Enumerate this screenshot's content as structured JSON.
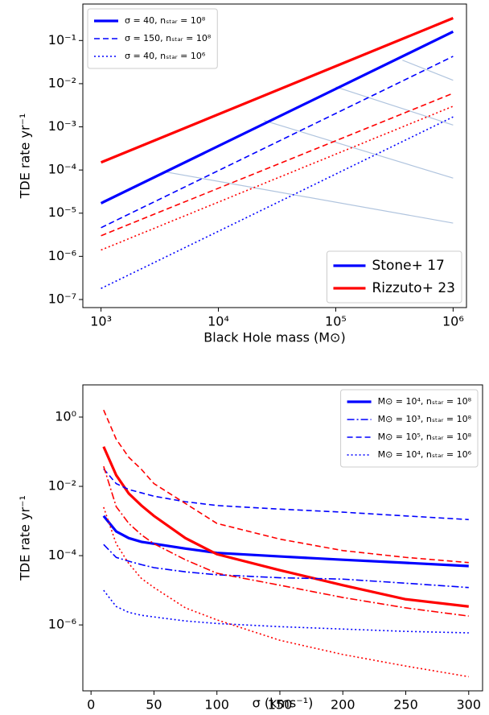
{
  "chart_data": [
    {
      "type": "line",
      "xlabel": "Black Hole mass (M⊙)",
      "ylabel": "TDE rate  yr⁻¹",
      "xlog": true,
      "ylog": true,
      "xlim": [
        700,
        1300000
      ],
      "ylim": [
        6.5e-08,
        0.7
      ],
      "xticks": [
        {
          "value": 1000,
          "label": "10³"
        },
        {
          "value": 10000,
          "label": "10⁴"
        },
        {
          "value": 100000,
          "label": "10⁵"
        },
        {
          "value": 1000000,
          "label": "10⁶"
        }
      ],
      "yticks": [
        {
          "value": 1e-07,
          "label": "10⁻⁷"
        },
        {
          "value": 1e-06,
          "label": "10⁻⁶"
        },
        {
          "value": 1e-05,
          "label": "10⁻⁵"
        },
        {
          "value": 0.0001,
          "label": "10⁻⁴"
        },
        {
          "value": 0.001,
          "label": "10⁻³"
        },
        {
          "value": 0.01,
          "label": "10⁻²"
        },
        {
          "value": 0.1,
          "label": "10⁻¹"
        }
      ],
      "series": [
        {
          "color": "#b0c4de",
          "dash": "solid",
          "width": 1.2,
          "x": [
            3400,
            1000000
          ],
          "values": [
            9.2e-05,
            5.9e-06
          ]
        },
        {
          "color": "#b0c4de",
          "dash": "solid",
          "width": 1.2,
          "x": [
            24500,
            1000000
          ],
          "values": [
            0.0014,
            6.5e-05
          ]
        },
        {
          "color": "#b0c4de",
          "dash": "solid",
          "width": 1.2,
          "x": [
            100000,
            1000000
          ],
          "values": [
            0.0084,
            0.0011
          ]
        },
        {
          "color": "#b0c4de",
          "dash": "solid",
          "width": 1.2,
          "x": [
            370000,
            1000000
          ],
          "values": [
            0.035,
            0.012
          ]
        },
        {
          "color": "#0000ff",
          "dash": "solid",
          "width": 3.2,
          "x": [
            1000,
            1000000
          ],
          "values": [
            1.7e-05,
            0.16
          ]
        },
        {
          "color": "#ff0000",
          "dash": "solid",
          "width": 3.2,
          "x": [
            1000,
            1000000
          ],
          "values": [
            0.00015,
            0.33
          ]
        },
        {
          "color": "#0000ff",
          "dash": "dashed",
          "width": 1.6,
          "x": [
            1000,
            1000000
          ],
          "values": [
            4.6e-06,
            0.043
          ]
        },
        {
          "color": "#ff0000",
          "dash": "dashed",
          "width": 1.6,
          "x": [
            1000,
            1000000
          ],
          "values": [
            3e-06,
            0.006
          ]
        },
        {
          "color": "#ff0000",
          "dash": "dotted",
          "width": 1.6,
          "x": [
            1000,
            1000000
          ],
          "values": [
            1.4e-06,
            0.003
          ]
        },
        {
          "color": "#0000ff",
          "dash": "dotted",
          "width": 1.6,
          "x": [
            1000,
            1000000
          ],
          "values": [
            1.8e-07,
            0.0017
          ]
        }
      ],
      "legends": [
        {
          "position": "upper left",
          "size": "small",
          "entries": [
            {
              "label": "σ = 40, nₛₜₐᵣ = 10⁸",
              "color": "#0000ff",
              "dash": "solid",
              "width": 3.2
            },
            {
              "label": "σ = 150, nₛₜₐᵣ = 10⁸",
              "color": "#0000ff",
              "dash": "dashed",
              "width": 1.6
            },
            {
              "label": "σ = 40, nₛₜₐᵣ = 10⁶",
              "color": "#0000ff",
              "dash": "dotted",
              "width": 1.6
            }
          ]
        },
        {
          "position": "lower right",
          "size": "large",
          "entries": [
            {
              "label": "Stone+ 17",
              "color": "#0000ff",
              "dash": "solid",
              "width": 3.2
            },
            {
              "label": "Rizzuto+ 23",
              "color": "#ff0000",
              "dash": "solid",
              "width": 3.2
            }
          ]
        }
      ]
    },
    {
      "type": "line",
      "xlabel": "σ (kms⁻¹)",
      "ylabel": "TDE rate  yr⁻¹",
      "xlog": false,
      "ylog": true,
      "xlim": [
        -6.5,
        311
      ],
      "ylim": [
        1.25e-08,
        8.5
      ],
      "xticks": [
        0,
        50,
        100,
        150,
        200,
        250,
        300
      ],
      "yticks": [
        {
          "value": 1e-06,
          "label": "10⁻⁶"
        },
        {
          "value": 0.0001,
          "label": "10⁻⁴"
        },
        {
          "value": 0.01,
          "label": "10⁻²"
        },
        {
          "value": 1,
          "label": "10⁰"
        }
      ],
      "x": [
        10,
        20,
        30,
        40,
        50,
        75,
        100,
        150,
        200,
        250,
        300
      ],
      "series": [
        {
          "color": "#0000ff",
          "dash": "solid",
          "width": 3.2,
          "values": [
            0.0014,
            0.0005,
            0.00032,
            0.00025,
            0.00022,
            0.00016,
            0.00012,
            9.5e-05,
            7.6e-05,
            6.2e-05,
            5e-05
          ]
        },
        {
          "color": "#ff0000",
          "dash": "solid",
          "width": 3.2,
          "values": [
            0.14,
            0.021,
            0.0062,
            0.0028,
            0.0014,
            0.00032,
            0.00011,
            3.8e-05,
            1.4e-05,
            5.5e-06,
            3.4e-06
          ]
        },
        {
          "color": "#0000ff",
          "dash": "dashed",
          "width": 1.6,
          "values": [
            0.032,
            0.012,
            0.0081,
            0.0065,
            0.0052,
            0.0036,
            0.0028,
            0.0022,
            0.0018,
            0.0014,
            0.0011
          ]
        },
        {
          "color": "#ff0000",
          "dash": "dashed",
          "width": 1.6,
          "values": [
            1.6,
            0.23,
            0.069,
            0.031,
            0.012,
            0.0032,
            0.00085,
            0.0003,
            0.00014,
            8.9e-05,
            6.3e-05
          ]
        },
        {
          "color": "#0000ff",
          "dash": "dashdot",
          "width": 1.6,
          "values": [
            0.00021,
            8.9e-05,
            6.9e-05,
            5.5e-05,
            4.5e-05,
            3.4e-05,
            2.8e-05,
            2.3e-05,
            2.1e-05,
            1.6e-05,
            1.2e-05
          ]
        },
        {
          "color": "#ff0000",
          "dash": "dashdot",
          "width": 1.6,
          "values": [
            0.038,
            0.0026,
            0.00085,
            0.0004,
            0.00022,
            7.6e-05,
            3.1e-05,
            1.4e-05,
            6.2e-06,
            3.1e-06,
            1.8e-06
          ]
        },
        {
          "color": "#0000ff",
          "dash": "dotted",
          "width": 1.6,
          "values": [
            1e-05,
            3.4e-06,
            2.3e-06,
            1.9e-06,
            1.7e-06,
            1.3e-06,
            1.1e-06,
            8.9e-07,
            7.6e-07,
            6.5e-07,
            5.9e-07
          ]
        },
        {
          "color": "#ff0000",
          "dash": "dotted",
          "width": 1.6,
          "values": [
            0.0025,
            0.00022,
            5.9e-05,
            2.2e-05,
            1.2e-05,
            3.1e-06,
            1.4e-06,
            3.6e-07,
            1.4e-07,
            6.5e-08,
            3.2e-08
          ]
        }
      ],
      "legends": [
        {
          "position": "upper right",
          "size": "small",
          "entries": [
            {
              "label": "M⊙ = 10⁴, nₛₜₐᵣ = 10⁸",
              "color": "#0000ff",
              "dash": "solid",
              "width": 3.2
            },
            {
              "label": "M⊙ = 10³, nₛₜₐᵣ = 10⁸",
              "color": "#0000ff",
              "dash": "dashdot",
              "width": 1.6
            },
            {
              "label": "M⊙ = 10⁵, nₛₜₐᵣ = 10⁸",
              "color": "#0000ff",
              "dash": "dashed",
              "width": 1.6
            },
            {
              "label": "M⊙ = 10⁴, nₛₜₐᵣ = 10⁶",
              "color": "#0000ff",
              "dash": "dotted",
              "width": 1.6
            }
          ]
        }
      ]
    }
  ]
}
